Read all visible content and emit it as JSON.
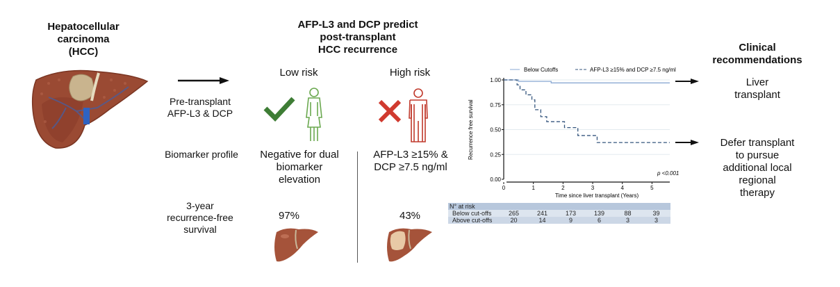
{
  "left": {
    "title_lines": [
      "Hepatocellular",
      "carcinoma",
      "(HCC)"
    ],
    "image": "liver-with-tumor-illustration"
  },
  "rows": {
    "pretransplant_lines": [
      "Pre-transplant",
      "AFP-L3 & DCP"
    ],
    "biomarker_label": "Biomarker profile",
    "survival_label_lines": [
      "3-year",
      "recurrence-free",
      "survival"
    ]
  },
  "middle": {
    "title_lines": [
      "AFP-L3 and DCP predict",
      "post-transplant",
      "HCC recurrence"
    ],
    "low_risk": {
      "label": "Low risk",
      "icon": "check-icon",
      "person": "female-figure-icon",
      "color": "#3e7d35",
      "profile_lines": [
        "Negative for dual",
        "biomarker",
        "elevation"
      ],
      "survival": "97%",
      "liver": "healthy-liver-icon"
    },
    "high_risk": {
      "label": "High risk",
      "icon": "cross-icon",
      "person": "male-figure-icon",
      "color": "#d03a2f",
      "profile_lines": [
        "AFP-L3 ≥15% &",
        "DCP ≥7.5 ng/ml"
      ],
      "survival": "43%",
      "liver": "tumor-liver-icon"
    }
  },
  "right": {
    "title_lines": [
      "Clinical",
      "recommendations"
    ],
    "rec1_lines": [
      "Liver",
      "transplant"
    ],
    "rec2_lines": [
      "Defer transplant",
      "to pursue",
      "additional local",
      "regional",
      "therapy"
    ]
  },
  "chart_data": {
    "type": "line",
    "subtype": "kaplan-meier step",
    "xlabel": "Time since liver transplant (Years)",
    "ylabel": "Recurrence free survival",
    "xlim": [
      0,
      5.6
    ],
    "ylim": [
      0,
      1
    ],
    "xticks": [
      "0",
      "1",
      "2",
      "3",
      "4",
      "5"
    ],
    "yticks": [
      "0.00",
      "0.25",
      "0.50",
      "0.75",
      "1.00"
    ],
    "grid": "horizontal",
    "legend_position": "top",
    "annotation": "p <0.001",
    "series": [
      {
        "name": "Below Cutoffs",
        "style": "solid",
        "color": "#8aa9d3",
        "x": [
          0,
          0.5,
          1.6,
          5.6
        ],
        "y": [
          1.0,
          0.985,
          0.97,
          0.97
        ]
      },
      {
        "name": "AFP-L3 ≥15% and DCP ≥7.5 ng/ml",
        "style": "dashed",
        "color": "#34557d",
        "x": [
          0,
          0.45,
          0.55,
          0.75,
          0.95,
          1.05,
          1.25,
          1.45,
          2.05,
          2.5,
          3.15,
          5.6
        ],
        "y": [
          1.0,
          0.95,
          0.9,
          0.85,
          0.8,
          0.7,
          0.63,
          0.58,
          0.52,
          0.44,
          0.37,
          0.37
        ]
      }
    ],
    "risk_table": {
      "title": "N° at risk",
      "rows": [
        {
          "label": "Below cut-offs",
          "values": [
            265,
            241,
            173,
            139,
            88,
            39
          ]
        },
        {
          "label": "Above cut-offs",
          "values": [
            20,
            14,
            9,
            6,
            3,
            3
          ]
        }
      ]
    }
  }
}
